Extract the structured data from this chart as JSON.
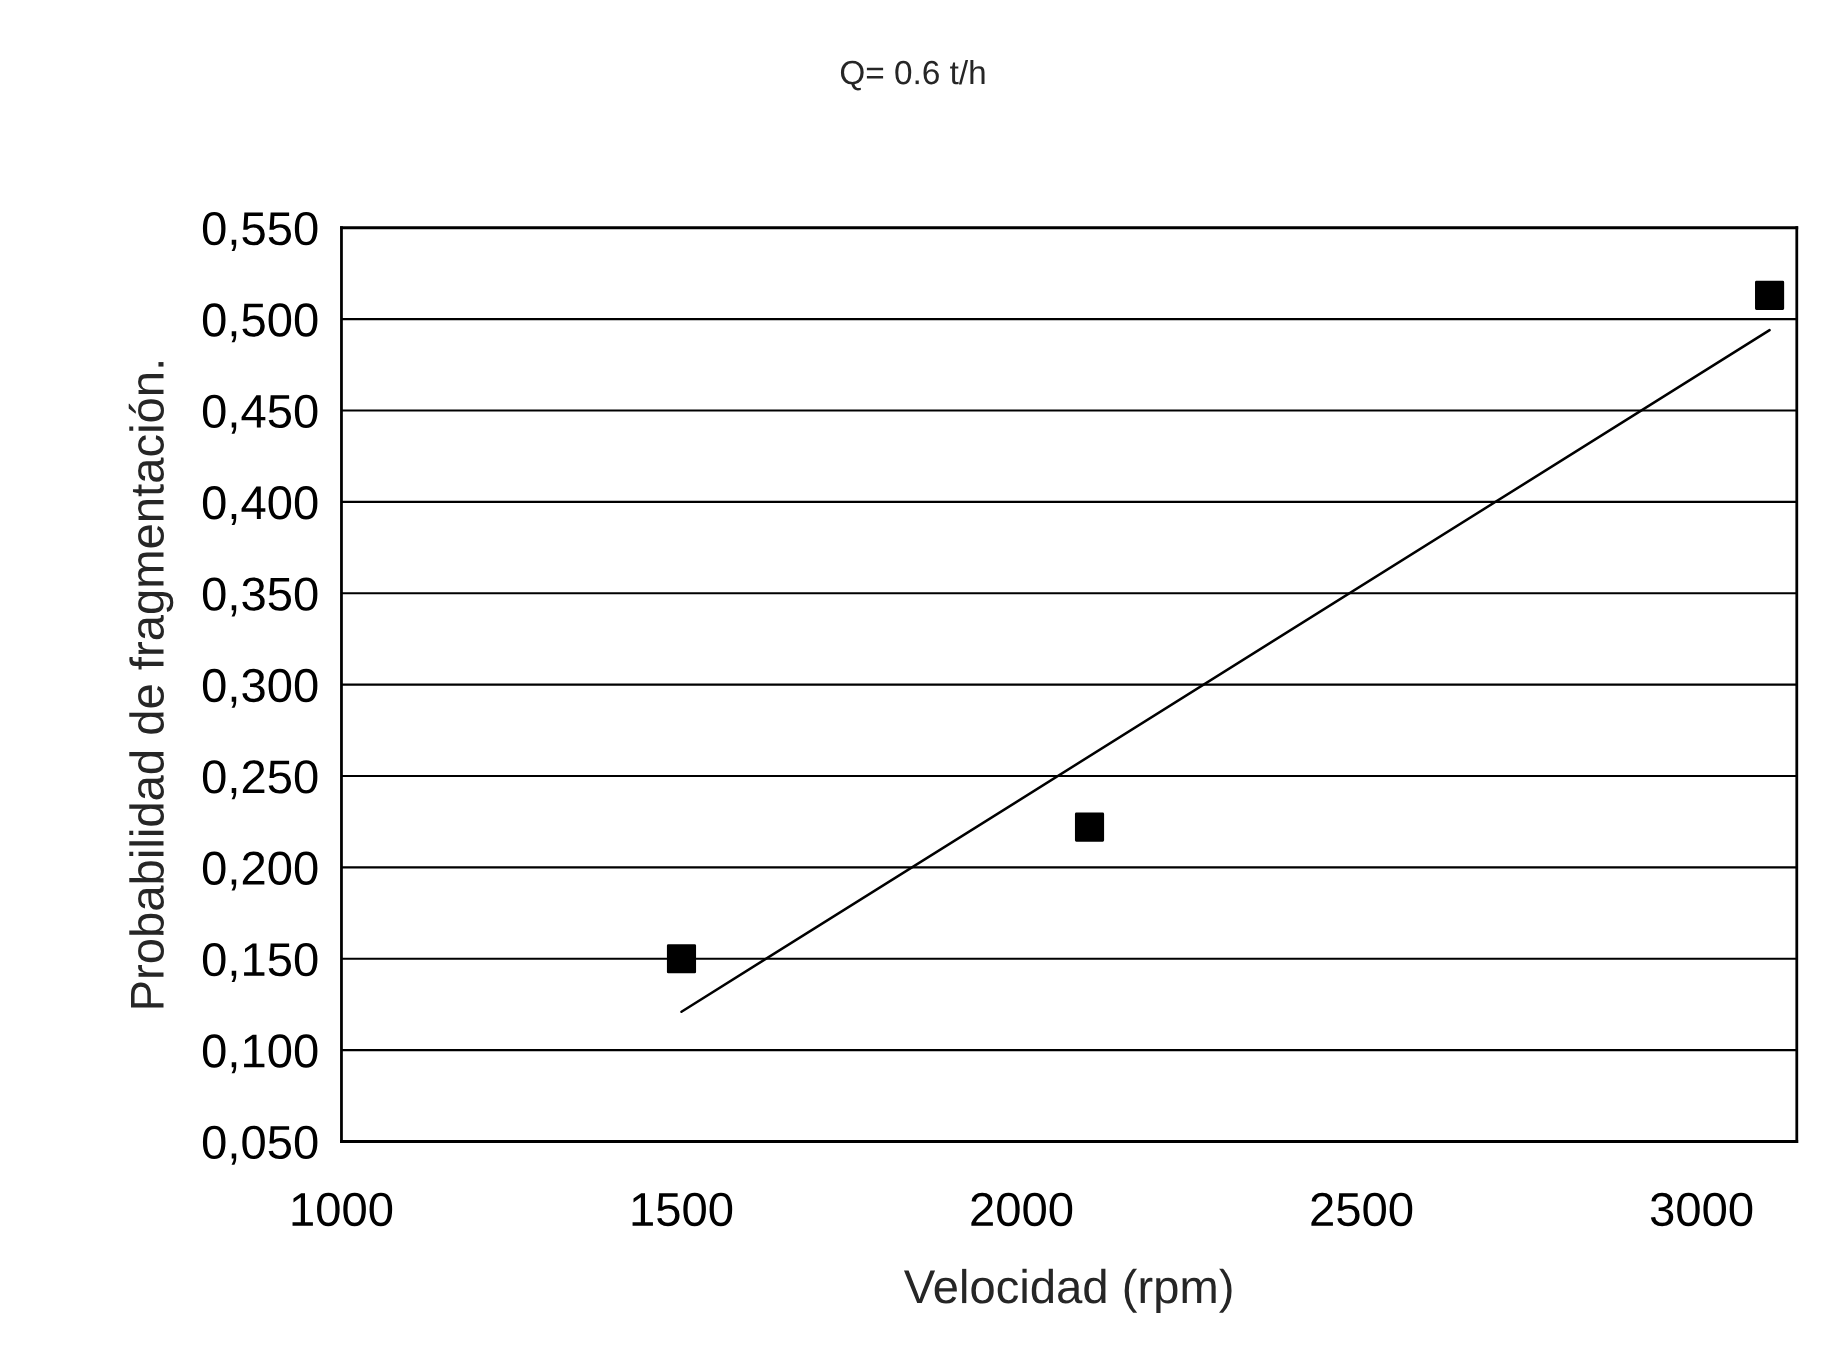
{
  "chart_data": {
    "type": "scatter",
    "title": "Q= 0.6 t/h",
    "xlabel": "Velocidad (rpm)",
    "ylabel": "Probabilidad de fragmentación.",
    "series": [
      {
        "color": "#000000",
        "marker": "square",
        "x": [
          1500,
          2100,
          3100
        ],
        "values": [
          0.15,
          0.222,
          0.513
        ]
      },
      {
        "type": "line",
        "color": "#000000",
        "marker": "none",
        "line_style": "solid",
        "x": [
          1500,
          3100
        ],
        "values": [
          0.121,
          0.494
        ]
      }
    ],
    "xlim": [
      1000,
      3140
    ],
    "xticks": [
      1000,
      1500,
      2000,
      2500,
      3000
    ],
    "ylim": [
      0.05,
      0.55
    ],
    "yticks": [
      {
        "value": 0.05,
        "label": "0,050"
      },
      {
        "value": 0.1,
        "label": "0,100"
      },
      {
        "value": 0.15,
        "label": "0,150"
      },
      {
        "value": 0.2,
        "label": "0,200"
      },
      {
        "value": 0.25,
        "label": "0,250"
      },
      {
        "value": 0.3,
        "label": "0,300"
      },
      {
        "value": 0.35,
        "label": "0,350"
      },
      {
        "value": 0.4,
        "label": "0,400"
      },
      {
        "value": 0.45,
        "label": "0,450"
      },
      {
        "value": 0.5,
        "label": "0,500"
      },
      {
        "value": 0.55,
        "label": "0,550"
      }
    ],
    "grid": "y",
    "legend": false
  }
}
